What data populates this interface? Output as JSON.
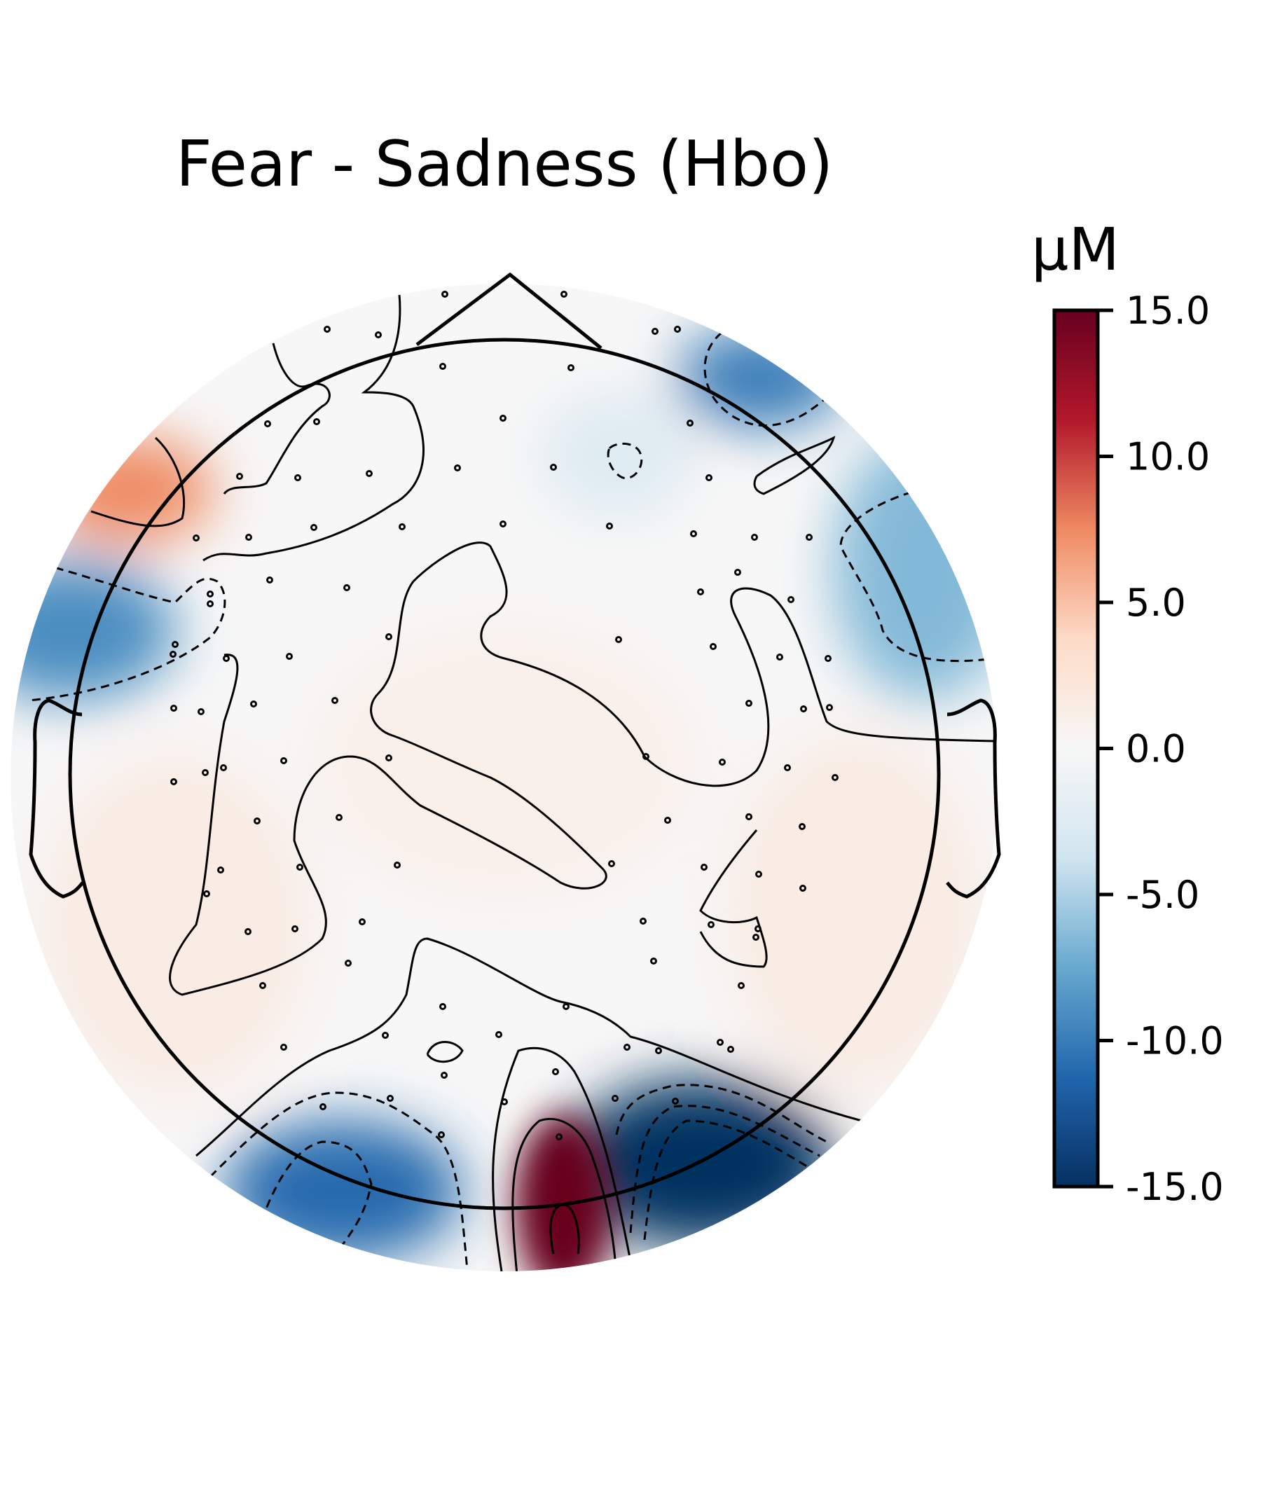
{
  "chart_data": {
    "type": "heatmap",
    "title": "Fear - Sadness (Hbo)",
    "colorbar": {
      "label": "μM",
      "min": -15.0,
      "max": 15.0,
      "ticks": [
        15.0,
        10.0,
        5.0,
        0.0,
        -5.0,
        -10.0,
        -15.0
      ],
      "tick_labels": [
        "15.0",
        "10.0",
        "5.0",
        "0.0",
        "-5.0",
        "-10.0",
        "-15.0"
      ],
      "colormap": "RdBu_r"
    },
    "colors": {
      "max": "#67001f",
      "pos_hi": "#b2182b",
      "pos_mid": "#ef8a62",
      "pos_lo": "#fddbc7",
      "zero": "#f7f7f7",
      "neg_lo": "#d1e5f0",
      "neg_mid": "#67a9cf",
      "neg_hi": "#2166ac",
      "min": "#053061"
    },
    "scalp_map": {
      "view": "top",
      "regions": [
        {
          "name": "left-frontal",
          "value": 7.5
        },
        {
          "name": "left-lateral",
          "value": -9.0
        },
        {
          "name": "right-frontal",
          "value": -10.0
        },
        {
          "name": "right-lateral",
          "value": -6.5
        },
        {
          "name": "frontal-midline",
          "value": -2.5
        },
        {
          "name": "central",
          "value": 1.0
        },
        {
          "name": "left-temporal",
          "value": 1.5
        },
        {
          "name": "right-temporal",
          "value": 1.5
        },
        {
          "name": "occipital-left",
          "value": -11.0
        },
        {
          "name": "occipital-midline",
          "value": 15.0
        },
        {
          "name": "occipital-right",
          "value": -15.0
        }
      ]
    }
  }
}
